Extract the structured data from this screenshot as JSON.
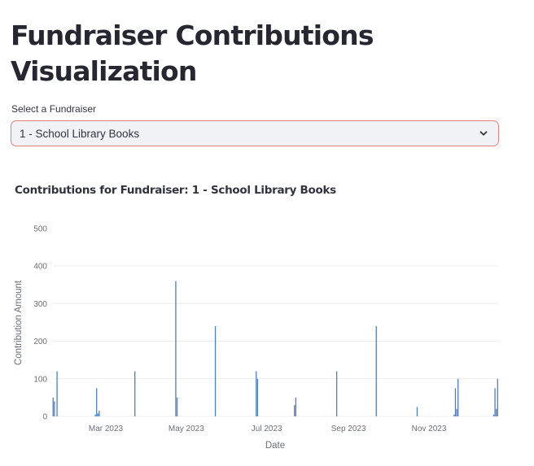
{
  "page": {
    "title": "Fundraiser Contributions Visualization"
  },
  "selector": {
    "label": "Select a Fundraiser",
    "selected_value": "1 - School Library Books",
    "icon": "chevron-down-icon",
    "border_color": "#e5807e",
    "background": "#f0f2f6"
  },
  "chart": {
    "title": "Contributions for Fundraiser: 1 - School Library Books"
  },
  "chart_data": {
    "type": "bar",
    "title": "Contributions for Fundraiser: 1 - School Library Books",
    "xlabel": "Date",
    "ylabel": "Contribution Amount",
    "ylim": [
      0,
      500
    ],
    "yticks": [
      0,
      100,
      200,
      300,
      400,
      500
    ],
    "xticks": [
      "Mar 2023",
      "May 2023",
      "Jul 2023",
      "Sep 2023",
      "Nov 2023"
    ],
    "grid": true,
    "bar_color": "#4e7fc4",
    "x": [
      "2023-01-20",
      "2023-01-21",
      "2023-01-23",
      "2023-02-21",
      "2023-02-22",
      "2023-02-23",
      "2023-02-24",
      "2023-03-23",
      "2023-04-23",
      "2023-04-24",
      "2023-05-23",
      "2023-06-23",
      "2023-06-24",
      "2023-07-22",
      "2023-07-23",
      "2023-08-23",
      "2023-09-22",
      "2023-10-23",
      "2023-11-20",
      "2023-11-21",
      "2023-11-22",
      "2023-11-23",
      "2023-12-20",
      "2023-12-21",
      "2023-12-22",
      "2023-12-23"
    ],
    "values": [
      50,
      40,
      120,
      5,
      75,
      8,
      15,
      120,
      360,
      50,
      240,
      120,
      100,
      30,
      50,
      120,
      240,
      25,
      5,
      75,
      20,
      100,
      5,
      75,
      20,
      100
    ]
  }
}
